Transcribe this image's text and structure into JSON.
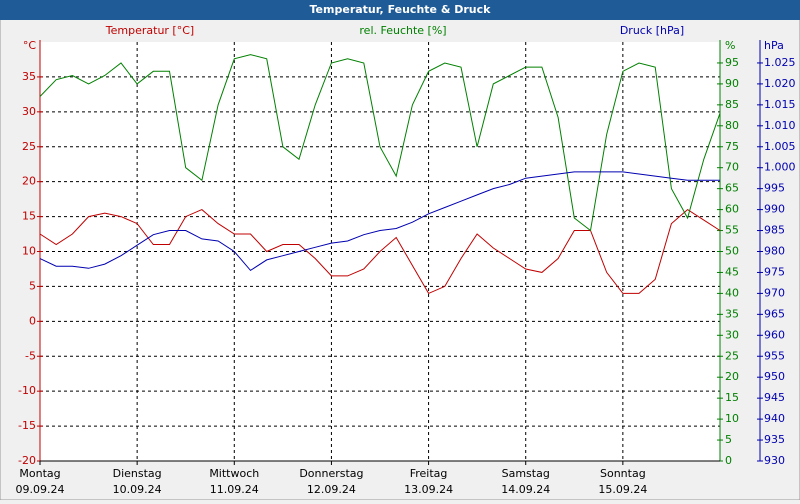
{
  "chart_data": {
    "type": "line",
    "title": "Temperatur, Feuchte & Druck",
    "x": [
      0,
      4,
      8,
      12,
      16,
      20,
      24,
      28,
      32,
      36,
      40,
      44,
      48,
      52,
      56,
      60,
      64,
      68,
      72,
      76,
      80,
      84,
      88,
      92,
      96,
      100,
      104,
      108,
      112,
      116,
      120,
      124,
      128,
      132,
      136,
      140,
      144,
      148,
      152,
      156,
      160,
      164,
      168
    ],
    "xlim": [
      0,
      168
    ],
    "xticks": [
      {
        "value": 0,
        "label": "Montag",
        "date": "09.09.24"
      },
      {
        "value": 24,
        "label": "Dienstag",
        "date": "10.09.24"
      },
      {
        "value": 48,
        "label": "Mittwoch",
        "date": "11.09.24"
      },
      {
        "value": 72,
        "label": "Donnerstag",
        "date": "12.09.24"
      },
      {
        "value": 96,
        "label": "Freitag",
        "date": "13.09.24"
      },
      {
        "value": 120,
        "label": "Samstag",
        "date": "14.09.24"
      },
      {
        "value": 144,
        "label": "Sonntag",
        "date": "15.09.24"
      }
    ],
    "ylim": [
      -20,
      40
    ],
    "yticks": [
      -20,
      -15,
      -10,
      -5,
      0,
      5,
      10,
      15,
      20,
      25,
      30,
      35
    ],
    "y_unit": "°C",
    "y2lim": [
      0,
      100
    ],
    "y2ticks": [
      0,
      5,
      10,
      15,
      20,
      25,
      30,
      35,
      40,
      45,
      50,
      55,
      60,
      65,
      70,
      75,
      80,
      85,
      90,
      95
    ],
    "y2_unit": "%",
    "y3lim": [
      930,
      1030
    ],
    "y3ticks": [
      930,
      935,
      940,
      945,
      950,
      955,
      960,
      965,
      970,
      975,
      980,
      985,
      990,
      995,
      {
        "value": 1000,
        "label": "1.000"
      },
      {
        "value": 1005,
        "label": "1.005"
      },
      {
        "value": 1010,
        "label": "1.010"
      },
      {
        "value": 1015,
        "label": "1.015"
      },
      {
        "value": 1020,
        "label": "1.020"
      },
      {
        "value": 1025,
        "label": "1.025"
      }
    ],
    "y3_unit": "hPa",
    "grid": true,
    "series": [
      {
        "name": "Temperatur [°C]",
        "color": "#c00000",
        "axis": "y",
        "values": [
          12.5,
          11,
          12.5,
          15,
          15.5,
          15,
          14,
          11,
          11,
          15,
          16,
          14,
          12.5,
          12.5,
          10,
          11,
          11,
          9,
          6.5,
          6.5,
          7.5,
          10,
          12,
          8,
          4,
          5,
          9,
          12.5,
          10.5,
          9,
          7.5,
          7,
          9,
          13,
          13,
          7,
          4,
          4,
          6,
          14,
          16,
          14.5,
          13
        ]
      },
      {
        "name": "rel. Feuchte [%]",
        "color": "#008000",
        "axis": "y2",
        "values": [
          87,
          91,
          92,
          90,
          92,
          95,
          90,
          93,
          93,
          70,
          67,
          85,
          96,
          97,
          96,
          75,
          72,
          85,
          95,
          96,
          95,
          75,
          68,
          85,
          93,
          95,
          94,
          75,
          90,
          92,
          94,
          94,
          82,
          58,
          55,
          78,
          93,
          95,
          94,
          65,
          58,
          72,
          83
        ]
      },
      {
        "name": "Druck [hPa]",
        "color": "#0000b0",
        "axis": "y3",
        "values": [
          978.3,
          976.5,
          976.5,
          976,
          977,
          979,
          981.5,
          984,
          985,
          985,
          983,
          982.5,
          980,
          975.5,
          978,
          979,
          980,
          981,
          982,
          982.5,
          984,
          985,
          985.5,
          987,
          989,
          990.5,
          992,
          993.5,
          995,
          996,
          997.5,
          998,
          998.5,
          999,
          999,
          999,
          999,
          998.5,
          998,
          997.5,
          997,
          997,
          997
        ]
      }
    ]
  }
}
